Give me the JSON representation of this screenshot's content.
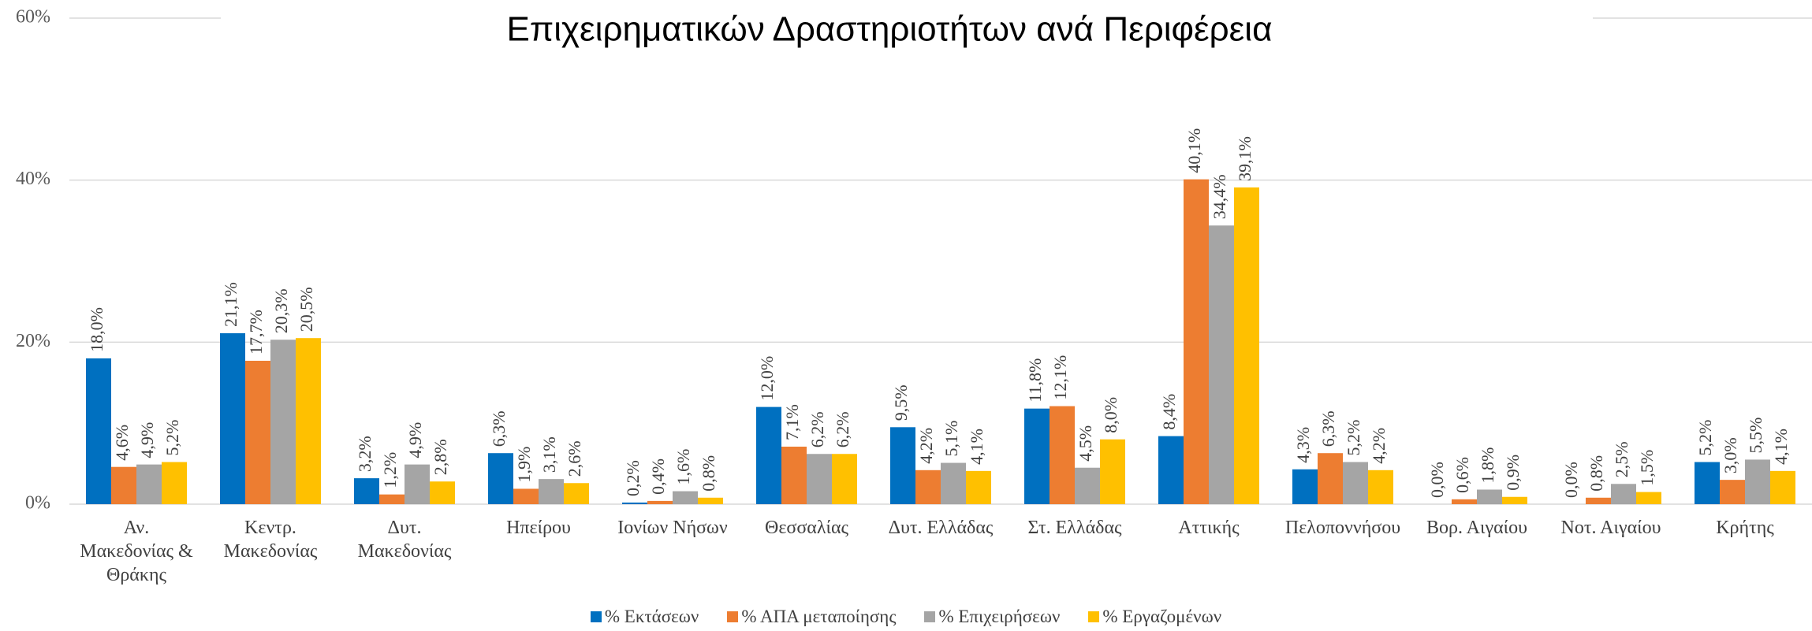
{
  "chart_data": {
    "type": "bar",
    "title": "Επιχειρηματικών Δραστηριοτήτων ανά Περιφέρεια",
    "categories": [
      "Αν.\nΜακεδονίας &\nΘράκης",
      "Κεντρ.\nΜακεδονίας",
      "Δυτ.\nΜακεδονίας",
      "Ηπείρου",
      "Ιονίων Νήσων",
      "Θεσσαλίας",
      "Δυτ. Ελλάδας",
      "Στ. Ελλάδας",
      "Αττικής",
      "Πελοποννήσου",
      "Βορ. Αιγαίου",
      "Νοτ. Αιγαίου",
      "Κρήτης"
    ],
    "series": [
      {
        "name": "% Εκτάσεων",
        "color": "#0070c0",
        "values": [
          18.0,
          21.1,
          3.2,
          6.3,
          0.2,
          12.0,
          9.5,
          11.8,
          8.4,
          4.3,
          0.0,
          0.0,
          5.2
        ],
        "value_labels": [
          "18,0%",
          "21,1%",
          "3,2%",
          "6,3%",
          "0,2%",
          "12,0%",
          "9,5%",
          "11,8%",
          "8,4%",
          "4,3%",
          "0,0%",
          "0,0%",
          "5,2%"
        ]
      },
      {
        "name": "% ΑΠΑ μεταποίησης",
        "color": "#ed7d31",
        "values": [
          4.6,
          17.7,
          1.2,
          1.9,
          0.4,
          7.1,
          4.2,
          12.1,
          40.1,
          6.3,
          0.6,
          0.8,
          3.0
        ],
        "value_labels": [
          "4,6%",
          "17,7%",
          "1,2%",
          "1,9%",
          "0,4%",
          "7,1%",
          "4,2%",
          "12,1%",
          "40,1%",
          "6,3%",
          "0,6%",
          "0,8%",
          "3,0%"
        ]
      },
      {
        "name": "% Επιχειρήσεων",
        "color": "#a5a5a5",
        "values": [
          4.9,
          20.3,
          4.9,
          3.1,
          1.6,
          6.2,
          5.1,
          4.5,
          34.4,
          5.2,
          1.8,
          2.5,
          5.5
        ],
        "value_labels": [
          "4,9%",
          "20,3%",
          "4,9%",
          "3,1%",
          "1,6%",
          "6,2%",
          "5,1%",
          "4,5%",
          "34,4%",
          "5,2%",
          "1,8%",
          "2,5%",
          "5,5%"
        ]
      },
      {
        "name": "% Εργαζομένων",
        "color": "#ffc000",
        "values": [
          5.2,
          20.5,
          2.8,
          2.6,
          0.8,
          6.2,
          4.1,
          8.0,
          39.1,
          4.2,
          0.9,
          1.5,
          4.1
        ],
        "value_labels": [
          "5,2%",
          "20,5%",
          "2,8%",
          "2,6%",
          "0,8%",
          "6,2%",
          "4,1%",
          "8,0%",
          "39,1%",
          "4,2%",
          "0,9%",
          "1,5%",
          "4,1%"
        ]
      }
    ],
    "ylim": [
      0,
      60
    ],
    "yticks": [
      {
        "value": 0,
        "label": "0%"
      },
      {
        "value": 20,
        "label": "20%"
      },
      {
        "value": 40,
        "label": "40%"
      },
      {
        "value": 60,
        "label": "60%"
      }
    ],
    "grid": true,
    "legend": "bottom"
  }
}
